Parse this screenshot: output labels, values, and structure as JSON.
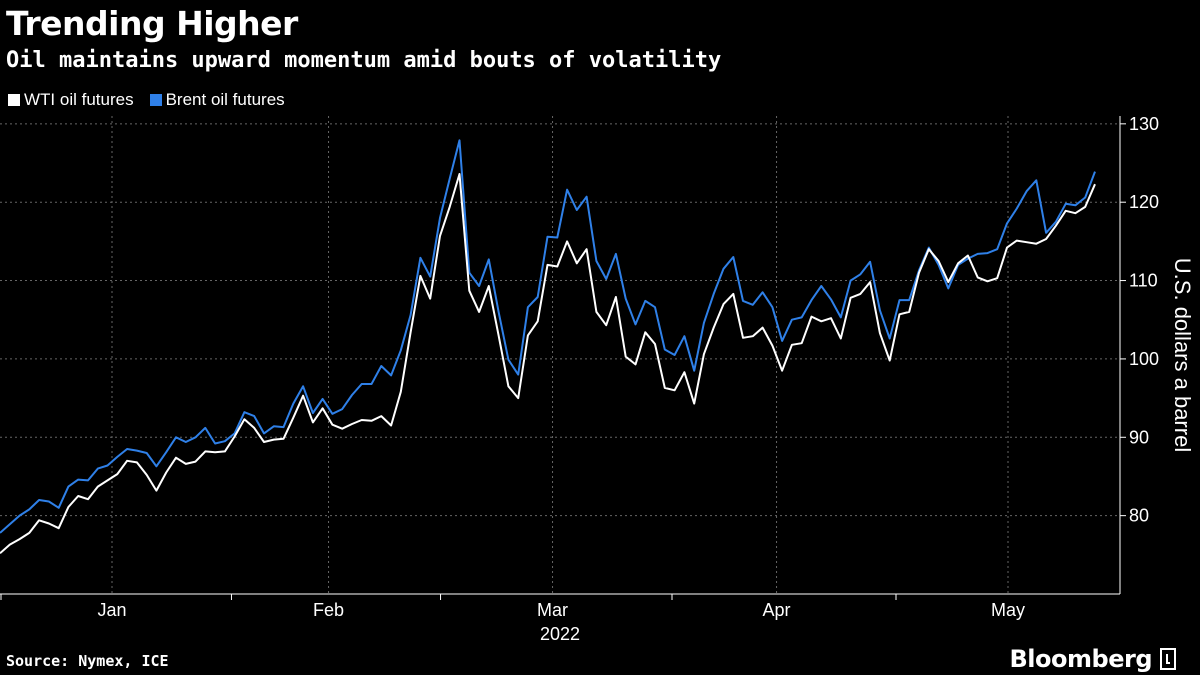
{
  "header": {
    "title": "Trending Higher",
    "subtitle": "Oil maintains upward momentum amid bouts of volatility"
  },
  "footer": {
    "source": "Source: Nymex, ICE",
    "brand": "Bloomberg"
  },
  "chart_data": {
    "type": "line",
    "title": "Trending Higher",
    "subtitle": "Oil maintains upward momentum amid bouts of volatility",
    "ylabel": "U.S. dollars a barrel",
    "year_label": "2022",
    "ylim": [
      70,
      131
    ],
    "yticks": [
      80,
      90,
      100,
      110,
      120,
      130
    ],
    "grid": true,
    "legend_position": "top-left",
    "x_start": "2022-01-01",
    "x_end": "2022-05-31",
    "months": [
      {
        "label": "Jan",
        "center": "2022-01-16"
      },
      {
        "label": "Feb",
        "center": "2022-02-14"
      },
      {
        "label": "Mar",
        "center": "2022-03-16"
      },
      {
        "label": "Apr",
        "center": "2022-04-15"
      },
      {
        "label": "May",
        "center": "2022-05-16"
      }
    ],
    "month_boundaries": [
      "2022-02-01",
      "2022-03-01",
      "2022-04-01",
      "2022-05-01"
    ],
    "colors": {
      "wti": "#ffffff",
      "brent": "#2f80e8",
      "grid": "#666666",
      "axis": "#ffffff"
    },
    "series": [
      {
        "name": "WTI oil futures",
        "color": "#ffffff",
        "points": [
          [
            "2022-01-01",
            75.2
          ],
          [
            "2022-01-02",
            76.3
          ],
          [
            "2022-01-03",
            77.0
          ],
          [
            "2022-01-04",
            77.8
          ],
          [
            "2022-01-05",
            79.4
          ],
          [
            "2022-01-06",
            79.0
          ],
          [
            "2022-01-07",
            78.4
          ],
          [
            "2022-01-08",
            81.1
          ],
          [
            "2022-01-09",
            82.5
          ],
          [
            "2022-01-10",
            82.1
          ],
          [
            "2022-01-11",
            83.7
          ],
          [
            "2022-01-12",
            84.5
          ],
          [
            "2022-01-13",
            85.3
          ],
          [
            "2022-01-14",
            87.0
          ],
          [
            "2022-01-15",
            86.8
          ],
          [
            "2022-01-16",
            85.2
          ],
          [
            "2022-01-17",
            83.2
          ],
          [
            "2022-01-18",
            85.5
          ],
          [
            "2022-01-19",
            87.4
          ],
          [
            "2022-01-20",
            86.6
          ],
          [
            "2022-01-21",
            86.9
          ],
          [
            "2022-01-22",
            88.2
          ],
          [
            "2022-01-23",
            88.1
          ],
          [
            "2022-01-24",
            88.2
          ],
          [
            "2022-01-25",
            90.1
          ],
          [
            "2022-01-26",
            92.3
          ],
          [
            "2022-01-27",
            91.2
          ],
          [
            "2022-01-28",
            89.4
          ],
          [
            "2022-01-29",
            89.7
          ],
          [
            "2022-01-30",
            89.8
          ],
          [
            "2022-01-31",
            92.5
          ],
          [
            "2022-02-01",
            95.3
          ],
          [
            "2022-02-02",
            91.9
          ],
          [
            "2022-02-03",
            93.7
          ],
          [
            "2022-02-04",
            91.6
          ],
          [
            "2022-02-05",
            91.1
          ],
          [
            "2022-02-06",
            91.7
          ],
          [
            "2022-02-07",
            92.2
          ],
          [
            "2022-02-08",
            92.1
          ],
          [
            "2022-02-09",
            92.7
          ],
          [
            "2022-02-10",
            91.5
          ],
          [
            "2022-02-11",
            95.8
          ],
          [
            "2022-02-12",
            103.4
          ],
          [
            "2022-02-13",
            110.6
          ],
          [
            "2022-02-14",
            107.7
          ],
          [
            "2022-02-15",
            115.7
          ],
          [
            "2022-02-16",
            119.4
          ],
          [
            "2022-02-17",
            123.6
          ],
          [
            "2022-02-18",
            108.7
          ],
          [
            "2022-02-19",
            106.0
          ],
          [
            "2022-02-20",
            109.3
          ],
          [
            "2022-02-21",
            103.0
          ],
          [
            "2022-02-22",
            96.5
          ],
          [
            "2022-02-23",
            95.0
          ],
          [
            "2022-02-24",
            103.0
          ],
          [
            "2022-02-25",
            104.8
          ],
          [
            "2022-02-26",
            112.0
          ],
          [
            "2022-02-27",
            111.8
          ],
          [
            "2022-02-28",
            115.0
          ],
          [
            "2022-03-01",
            112.2
          ],
          [
            "2022-03-02",
            114.0
          ],
          [
            "2022-03-03",
            106.0
          ],
          [
            "2022-03-04",
            104.3
          ],
          [
            "2022-03-05",
            107.9
          ],
          [
            "2022-03-06",
            100.3
          ],
          [
            "2022-03-07",
            99.3
          ],
          [
            "2022-03-08",
            103.4
          ],
          [
            "2022-03-09",
            101.9
          ],
          [
            "2022-03-10",
            96.3
          ],
          [
            "2022-03-11",
            96.0
          ],
          [
            "2022-03-12",
            98.3
          ],
          [
            "2022-03-13",
            94.3
          ],
          [
            "2022-03-14",
            100.6
          ],
          [
            "2022-03-15",
            104.0
          ],
          [
            "2022-03-16",
            107.0
          ],
          [
            "2022-03-17",
            108.3
          ],
          [
            "2022-03-18",
            102.7
          ],
          [
            "2022-03-19",
            102.9
          ],
          [
            "2022-03-20",
            104.0
          ],
          [
            "2022-03-21",
            101.7
          ],
          [
            "2022-03-22",
            98.5
          ],
          [
            "2022-03-23",
            101.8
          ],
          [
            "2022-03-24",
            102.0
          ],
          [
            "2022-03-25",
            105.4
          ],
          [
            "2022-03-26",
            104.8
          ],
          [
            "2022-03-27",
            105.2
          ],
          [
            "2022-03-28",
            102.6
          ],
          [
            "2022-03-29",
            107.8
          ],
          [
            "2022-03-30",
            108.3
          ],
          [
            "2022-03-31",
            109.8
          ],
          [
            "2022-04-01",
            103.3
          ],
          [
            "2022-04-02",
            99.8
          ],
          [
            "2022-04-03",
            105.7
          ],
          [
            "2022-04-04",
            106.0
          ],
          [
            "2022-04-05",
            111.0
          ],
          [
            "2022-04-06",
            114.0
          ],
          [
            "2022-04-07",
            112.5
          ],
          [
            "2022-04-08",
            109.8
          ],
          [
            "2022-04-09",
            112.2
          ],
          [
            "2022-04-10",
            113.2
          ],
          [
            "2022-04-11",
            110.4
          ],
          [
            "2022-04-12",
            109.9
          ],
          [
            "2022-04-13",
            110.3
          ],
          [
            "2022-04-14",
            114.2
          ],
          [
            "2022-04-15",
            115.1
          ],
          [
            "2022-04-16",
            114.9
          ],
          [
            "2022-04-17",
            114.7
          ],
          [
            "2022-04-18",
            115.3
          ],
          [
            "2022-04-19",
            117.0
          ],
          [
            "2022-04-20",
            118.9
          ],
          [
            "2022-04-21",
            118.6
          ],
          [
            "2022-04-22",
            119.4
          ],
          [
            "2022-04-23",
            122.3
          ]
        ]
      },
      {
        "name": "Brent oil futures",
        "color": "#2f80e8",
        "points": [
          [
            "2022-01-01",
            77.8
          ],
          [
            "2022-01-02",
            78.9
          ],
          [
            "2022-01-03",
            80.0
          ],
          [
            "2022-01-04",
            80.8
          ],
          [
            "2022-01-05",
            82.0
          ],
          [
            "2022-01-06",
            81.8
          ],
          [
            "2022-01-07",
            81.0
          ],
          [
            "2022-01-08",
            83.7
          ],
          [
            "2022-01-09",
            84.6
          ],
          [
            "2022-01-10",
            84.5
          ],
          [
            "2022-01-11",
            86.0
          ],
          [
            "2022-01-12",
            86.4
          ],
          [
            "2022-01-13",
            87.5
          ],
          [
            "2022-01-14",
            88.5
          ],
          [
            "2022-01-15",
            88.3
          ],
          [
            "2022-01-16",
            88.0
          ],
          [
            "2022-01-17",
            86.3
          ],
          [
            "2022-01-18",
            88.1
          ],
          [
            "2022-01-19",
            90.0
          ],
          [
            "2022-01-20",
            89.4
          ],
          [
            "2022-01-21",
            90.0
          ],
          [
            "2022-01-22",
            91.2
          ],
          [
            "2022-01-23",
            89.2
          ],
          [
            "2022-01-24",
            89.5
          ],
          [
            "2022-01-25",
            90.5
          ],
          [
            "2022-01-26",
            93.2
          ],
          [
            "2022-01-27",
            92.7
          ],
          [
            "2022-01-28",
            90.5
          ],
          [
            "2022-01-29",
            91.4
          ],
          [
            "2022-01-30",
            91.3
          ],
          [
            "2022-01-31",
            94.3
          ],
          [
            "2022-02-01",
            96.5
          ],
          [
            "2022-02-02",
            93.1
          ],
          [
            "2022-02-03",
            94.9
          ],
          [
            "2022-02-04",
            93.0
          ],
          [
            "2022-02-05",
            93.6
          ],
          [
            "2022-02-06",
            95.4
          ],
          [
            "2022-02-07",
            96.8
          ],
          [
            "2022-02-08",
            96.8
          ],
          [
            "2022-02-09",
            99.1
          ],
          [
            "2022-02-10",
            97.9
          ],
          [
            "2022-02-11",
            101.1
          ],
          [
            "2022-02-12",
            105.6
          ],
          [
            "2022-02-13",
            112.9
          ],
          [
            "2022-02-14",
            110.5
          ],
          [
            "2022-02-15",
            118.0
          ],
          [
            "2022-02-16",
            123.0
          ],
          [
            "2022-02-17",
            127.9
          ],
          [
            "2022-02-18",
            111.0
          ],
          [
            "2022-02-19",
            109.3
          ],
          [
            "2022-02-20",
            112.7
          ],
          [
            "2022-02-21",
            106.0
          ],
          [
            "2022-02-22",
            99.9
          ],
          [
            "2022-02-23",
            98.0
          ],
          [
            "2022-02-24",
            106.6
          ],
          [
            "2022-02-25",
            107.9
          ],
          [
            "2022-02-26",
            115.6
          ],
          [
            "2022-02-27",
            115.5
          ],
          [
            "2022-02-28",
            121.6
          ],
          [
            "2022-03-01",
            119.0
          ],
          [
            "2022-03-02",
            120.7
          ],
          [
            "2022-03-03",
            112.5
          ],
          [
            "2022-03-04",
            110.2
          ],
          [
            "2022-03-05",
            113.4
          ],
          [
            "2022-03-06",
            107.7
          ],
          [
            "2022-03-07",
            104.4
          ],
          [
            "2022-03-08",
            107.4
          ],
          [
            "2022-03-09",
            106.6
          ],
          [
            "2022-03-10",
            101.2
          ],
          [
            "2022-03-11",
            100.5
          ],
          [
            "2022-03-12",
            102.9
          ],
          [
            "2022-03-13",
            98.5
          ],
          [
            "2022-03-14",
            104.6
          ],
          [
            "2022-03-15",
            108.3
          ],
          [
            "2022-03-16",
            111.5
          ],
          [
            "2022-03-17",
            113.0
          ],
          [
            "2022-03-18",
            107.4
          ],
          [
            "2022-03-19",
            106.9
          ],
          [
            "2022-03-20",
            108.5
          ],
          [
            "2022-03-21",
            106.6
          ],
          [
            "2022-03-22",
            102.3
          ],
          [
            "2022-03-23",
            105.0
          ],
          [
            "2022-03-24",
            105.3
          ],
          [
            "2022-03-25",
            107.5
          ],
          [
            "2022-03-26",
            109.3
          ],
          [
            "2022-03-27",
            107.6
          ],
          [
            "2022-03-28",
            105.3
          ],
          [
            "2022-03-29",
            110.0
          ],
          [
            "2022-03-30",
            110.8
          ],
          [
            "2022-03-31",
            112.4
          ],
          [
            "2022-04-01",
            106.2
          ],
          [
            "2022-04-02",
            102.6
          ],
          [
            "2022-04-03",
            107.5
          ],
          [
            "2022-04-04",
            107.5
          ],
          [
            "2022-04-05",
            111.3
          ],
          [
            "2022-04-06",
            114.2
          ],
          [
            "2022-04-07",
            112.0
          ],
          [
            "2022-04-08",
            109.0
          ],
          [
            "2022-04-09",
            112.0
          ],
          [
            "2022-04-10",
            112.8
          ],
          [
            "2022-04-11",
            113.4
          ],
          [
            "2022-04-12",
            113.5
          ],
          [
            "2022-04-13",
            114.0
          ],
          [
            "2022-04-14",
            117.3
          ],
          [
            "2022-04-15",
            119.2
          ],
          [
            "2022-04-16",
            121.4
          ],
          [
            "2022-04-17",
            122.8
          ],
          [
            "2022-04-18",
            116.1
          ],
          [
            "2022-04-19",
            117.5
          ],
          [
            "2022-04-20",
            119.8
          ],
          [
            "2022-04-21",
            119.6
          ],
          [
            "2022-04-22",
            120.6
          ],
          [
            "2022-04-23",
            123.9
          ]
        ]
      }
    ]
  }
}
